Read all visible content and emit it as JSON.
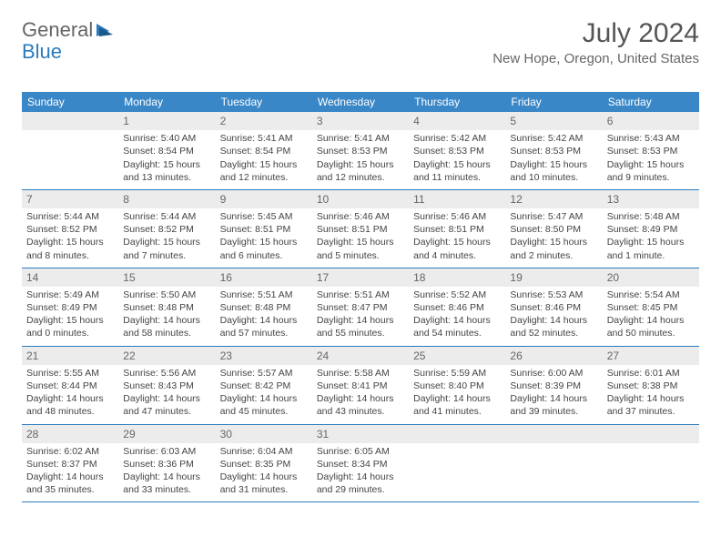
{
  "logo": {
    "text1": "General",
    "text2": "Blue"
  },
  "title": "July 2024",
  "location": "New Hope, Oregon, United States",
  "colors": {
    "header_bar": "#3a87c7",
    "header_text": "#ffffff",
    "divider": "#2b7bbd",
    "daynum_bg": "#ececec",
    "body_text": "#444444",
    "logo_blue": "#2b7bbd"
  },
  "weekdays": [
    "Sunday",
    "Monday",
    "Tuesday",
    "Wednesday",
    "Thursday",
    "Friday",
    "Saturday"
  ],
  "weeks": [
    [
      null,
      {
        "n": "1",
        "sr": "5:40 AM",
        "ss": "8:54 PM",
        "dl": "15 hours and 13 minutes."
      },
      {
        "n": "2",
        "sr": "5:41 AM",
        "ss": "8:54 PM",
        "dl": "15 hours and 12 minutes."
      },
      {
        "n": "3",
        "sr": "5:41 AM",
        "ss": "8:53 PM",
        "dl": "15 hours and 12 minutes."
      },
      {
        "n": "4",
        "sr": "5:42 AM",
        "ss": "8:53 PM",
        "dl": "15 hours and 11 minutes."
      },
      {
        "n": "5",
        "sr": "5:42 AM",
        "ss": "8:53 PM",
        "dl": "15 hours and 10 minutes."
      },
      {
        "n": "6",
        "sr": "5:43 AM",
        "ss": "8:53 PM",
        "dl": "15 hours and 9 minutes."
      }
    ],
    [
      {
        "n": "7",
        "sr": "5:44 AM",
        "ss": "8:52 PM",
        "dl": "15 hours and 8 minutes."
      },
      {
        "n": "8",
        "sr": "5:44 AM",
        "ss": "8:52 PM",
        "dl": "15 hours and 7 minutes."
      },
      {
        "n": "9",
        "sr": "5:45 AM",
        "ss": "8:51 PM",
        "dl": "15 hours and 6 minutes."
      },
      {
        "n": "10",
        "sr": "5:46 AM",
        "ss": "8:51 PM",
        "dl": "15 hours and 5 minutes."
      },
      {
        "n": "11",
        "sr": "5:46 AM",
        "ss": "8:51 PM",
        "dl": "15 hours and 4 minutes."
      },
      {
        "n": "12",
        "sr": "5:47 AM",
        "ss": "8:50 PM",
        "dl": "15 hours and 2 minutes."
      },
      {
        "n": "13",
        "sr": "5:48 AM",
        "ss": "8:49 PM",
        "dl": "15 hours and 1 minute."
      }
    ],
    [
      {
        "n": "14",
        "sr": "5:49 AM",
        "ss": "8:49 PM",
        "dl": "15 hours and 0 minutes."
      },
      {
        "n": "15",
        "sr": "5:50 AM",
        "ss": "8:48 PM",
        "dl": "14 hours and 58 minutes."
      },
      {
        "n": "16",
        "sr": "5:51 AM",
        "ss": "8:48 PM",
        "dl": "14 hours and 57 minutes."
      },
      {
        "n": "17",
        "sr": "5:51 AM",
        "ss": "8:47 PM",
        "dl": "14 hours and 55 minutes."
      },
      {
        "n": "18",
        "sr": "5:52 AM",
        "ss": "8:46 PM",
        "dl": "14 hours and 54 minutes."
      },
      {
        "n": "19",
        "sr": "5:53 AM",
        "ss": "8:46 PM",
        "dl": "14 hours and 52 minutes."
      },
      {
        "n": "20",
        "sr": "5:54 AM",
        "ss": "8:45 PM",
        "dl": "14 hours and 50 minutes."
      }
    ],
    [
      {
        "n": "21",
        "sr": "5:55 AM",
        "ss": "8:44 PM",
        "dl": "14 hours and 48 minutes."
      },
      {
        "n": "22",
        "sr": "5:56 AM",
        "ss": "8:43 PM",
        "dl": "14 hours and 47 minutes."
      },
      {
        "n": "23",
        "sr": "5:57 AM",
        "ss": "8:42 PM",
        "dl": "14 hours and 45 minutes."
      },
      {
        "n": "24",
        "sr": "5:58 AM",
        "ss": "8:41 PM",
        "dl": "14 hours and 43 minutes."
      },
      {
        "n": "25",
        "sr": "5:59 AM",
        "ss": "8:40 PM",
        "dl": "14 hours and 41 minutes."
      },
      {
        "n": "26",
        "sr": "6:00 AM",
        "ss": "8:39 PM",
        "dl": "14 hours and 39 minutes."
      },
      {
        "n": "27",
        "sr": "6:01 AM",
        "ss": "8:38 PM",
        "dl": "14 hours and 37 minutes."
      }
    ],
    [
      {
        "n": "28",
        "sr": "6:02 AM",
        "ss": "8:37 PM",
        "dl": "14 hours and 35 minutes."
      },
      {
        "n": "29",
        "sr": "6:03 AM",
        "ss": "8:36 PM",
        "dl": "14 hours and 33 minutes."
      },
      {
        "n": "30",
        "sr": "6:04 AM",
        "ss": "8:35 PM",
        "dl": "14 hours and 31 minutes."
      },
      {
        "n": "31",
        "sr": "6:05 AM",
        "ss": "8:34 PM",
        "dl": "14 hours and 29 minutes."
      },
      null,
      null,
      null
    ]
  ]
}
